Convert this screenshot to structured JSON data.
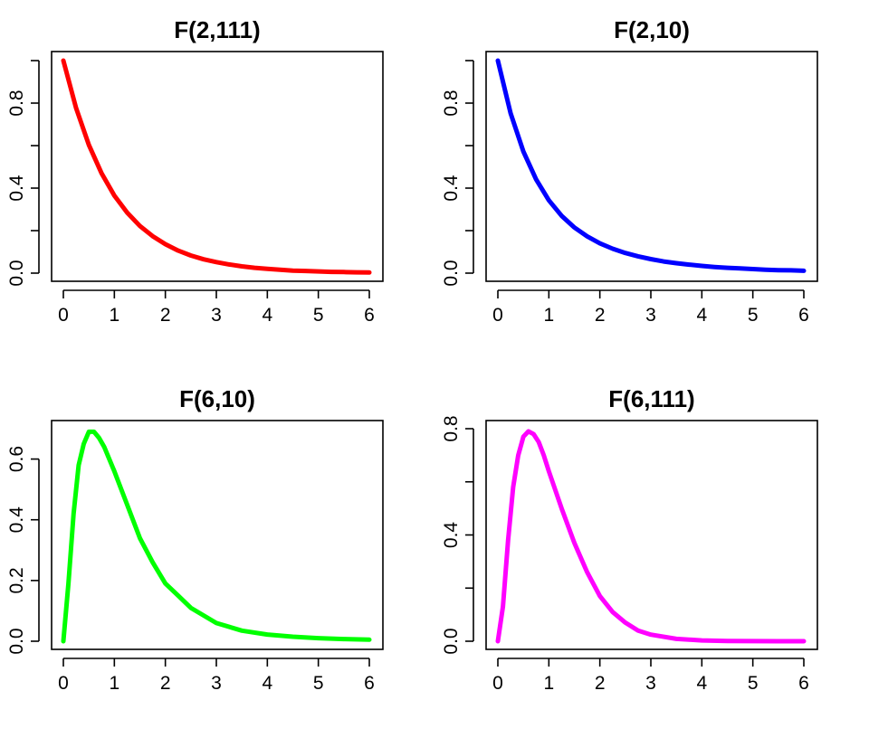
{
  "chart_data": [
    {
      "type": "line",
      "title": "F(2,111)",
      "color": "#ff0000",
      "xlim": [
        0,
        6
      ],
      "ylim": [
        0,
        1
      ],
      "xticks": [
        "0",
        "1",
        "2",
        "3",
        "4",
        "5",
        "6"
      ],
      "yticks": [
        "0.0",
        "0.4",
        "0.8"
      ],
      "x": [
        0,
        0.25,
        0.5,
        0.75,
        1,
        1.25,
        1.5,
        1.75,
        2,
        2.25,
        2.5,
        2.75,
        3,
        3.25,
        3.5,
        3.75,
        4,
        4.25,
        4.5,
        4.75,
        5,
        5.25,
        5.5,
        5.75,
        6
      ],
      "y": [
        1.0,
        0.776,
        0.603,
        0.469,
        0.365,
        0.285,
        0.222,
        0.174,
        0.136,
        0.106,
        0.083,
        0.065,
        0.052,
        0.041,
        0.032,
        0.025,
        0.02,
        0.016,
        0.012,
        0.01,
        0.008,
        0.006,
        0.005,
        0.004,
        0.003
      ]
    },
    {
      "type": "line",
      "title": "F(2,10)",
      "color": "#0000ff",
      "xlim": [
        0,
        6
      ],
      "ylim": [
        0,
        1
      ],
      "xticks": [
        "0",
        "1",
        "2",
        "3",
        "4",
        "5",
        "6"
      ],
      "yticks": [
        "0.0",
        "0.4",
        "0.8"
      ],
      "x": [
        0,
        0.25,
        0.5,
        0.75,
        1,
        1.25,
        1.5,
        1.75,
        2,
        2.25,
        2.5,
        2.75,
        3,
        3.25,
        3.5,
        3.75,
        4,
        4.25,
        4.5,
        4.75,
        5,
        5.25,
        5.5,
        5.75,
        6
      ],
      "y": [
        1.0,
        0.752,
        0.572,
        0.441,
        0.343,
        0.27,
        0.215,
        0.173,
        0.14,
        0.115,
        0.095,
        0.079,
        0.066,
        0.055,
        0.047,
        0.04,
        0.034,
        0.029,
        0.025,
        0.022,
        0.019,
        0.016,
        0.014,
        0.013,
        0.011
      ]
    },
    {
      "type": "line",
      "title": "F(6,10)",
      "color": "#00ff00",
      "xlim": [
        0,
        6
      ],
      "ylim": [
        0,
        0.7
      ],
      "xticks": [
        "0",
        "1",
        "2",
        "3",
        "4",
        "5",
        "6"
      ],
      "yticks": [
        "0.0",
        "0.2",
        "0.4",
        "0.6"
      ],
      "x": [
        0,
        0.1,
        0.2,
        0.3,
        0.4,
        0.5,
        0.6,
        0.7,
        0.8,
        1.0,
        1.25,
        1.5,
        1.75,
        2.0,
        2.25,
        2.5,
        3.0,
        3.5,
        4.0,
        4.5,
        5.0,
        5.5,
        6.0
      ],
      "y": [
        0.0,
        0.19,
        0.42,
        0.58,
        0.65,
        0.69,
        0.69,
        0.67,
        0.64,
        0.56,
        0.45,
        0.34,
        0.26,
        0.19,
        0.15,
        0.11,
        0.06,
        0.035,
        0.022,
        0.015,
        0.01,
        0.007,
        0.005
      ]
    },
    {
      "type": "line",
      "title": "F(6,111)",
      "color": "#ff00ff",
      "xlim": [
        0,
        6
      ],
      "ylim": [
        0,
        0.8
      ],
      "xticks": [
        "0",
        "1",
        "2",
        "3",
        "4",
        "5",
        "6"
      ],
      "yticks": [
        "0.0",
        "0.4",
        "0.8"
      ],
      "x": [
        0,
        0.1,
        0.2,
        0.3,
        0.4,
        0.5,
        0.6,
        0.7,
        0.8,
        0.9,
        1.0,
        1.25,
        1.5,
        1.75,
        2.0,
        2.25,
        2.5,
        2.75,
        3.0,
        3.5,
        4.0,
        4.5,
        5.0,
        5.5,
        6.0
      ],
      "y": [
        0.0,
        0.13,
        0.38,
        0.58,
        0.7,
        0.77,
        0.79,
        0.78,
        0.75,
        0.7,
        0.64,
        0.5,
        0.37,
        0.26,
        0.17,
        0.11,
        0.07,
        0.04,
        0.025,
        0.009,
        0.003,
        0.001,
        0.0005,
        0.0001,
        0.0
      ]
    }
  ]
}
